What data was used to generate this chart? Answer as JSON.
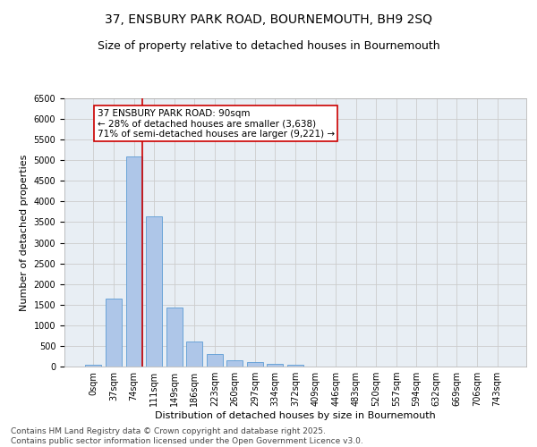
{
  "title_line1": "37, ENSBURY PARK ROAD, BOURNEMOUTH, BH9 2SQ",
  "title_line2": "Size of property relative to detached houses in Bournemouth",
  "xlabel": "Distribution of detached houses by size in Bournemouth",
  "ylabel": "Number of detached properties",
  "categories": [
    "0sqm",
    "37sqm",
    "74sqm",
    "111sqm",
    "149sqm",
    "186sqm",
    "223sqm",
    "260sqm",
    "297sqm",
    "334sqm",
    "372sqm",
    "409sqm",
    "446sqm",
    "483sqm",
    "520sqm",
    "557sqm",
    "594sqm",
    "632sqm",
    "669sqm",
    "706sqm",
    "743sqm"
  ],
  "values": [
    50,
    1650,
    5100,
    3630,
    1420,
    610,
    310,
    150,
    100,
    70,
    40,
    10,
    0,
    0,
    0,
    0,
    0,
    0,
    0,
    0,
    0
  ],
  "bar_color": "#aec6e8",
  "bar_edge_color": "#5b9bd5",
  "bar_width": 0.8,
  "ylim": [
    0,
    6500
  ],
  "yticks": [
    0,
    500,
    1000,
    1500,
    2000,
    2500,
    3000,
    3500,
    4000,
    4500,
    5000,
    5500,
    6000,
    6500
  ],
  "vline_x": 2.43,
  "vline_color": "#cc0000",
  "annotation_box_text": "37 ENSBURY PARK ROAD: 90sqm\n← 28% of detached houses are smaller (3,638)\n71% of semi-detached houses are larger (9,221) →",
  "box_edge_color": "#cc0000",
  "grid_color": "#cccccc",
  "background_color": "#e8eef4",
  "footnote": "Contains HM Land Registry data © Crown copyright and database right 2025.\nContains public sector information licensed under the Open Government Licence v3.0.",
  "title_fontsize": 10,
  "subtitle_fontsize": 9,
  "axis_label_fontsize": 8,
  "tick_fontsize": 7,
  "annot_fontsize": 7.5,
  "footnote_fontsize": 6.5
}
